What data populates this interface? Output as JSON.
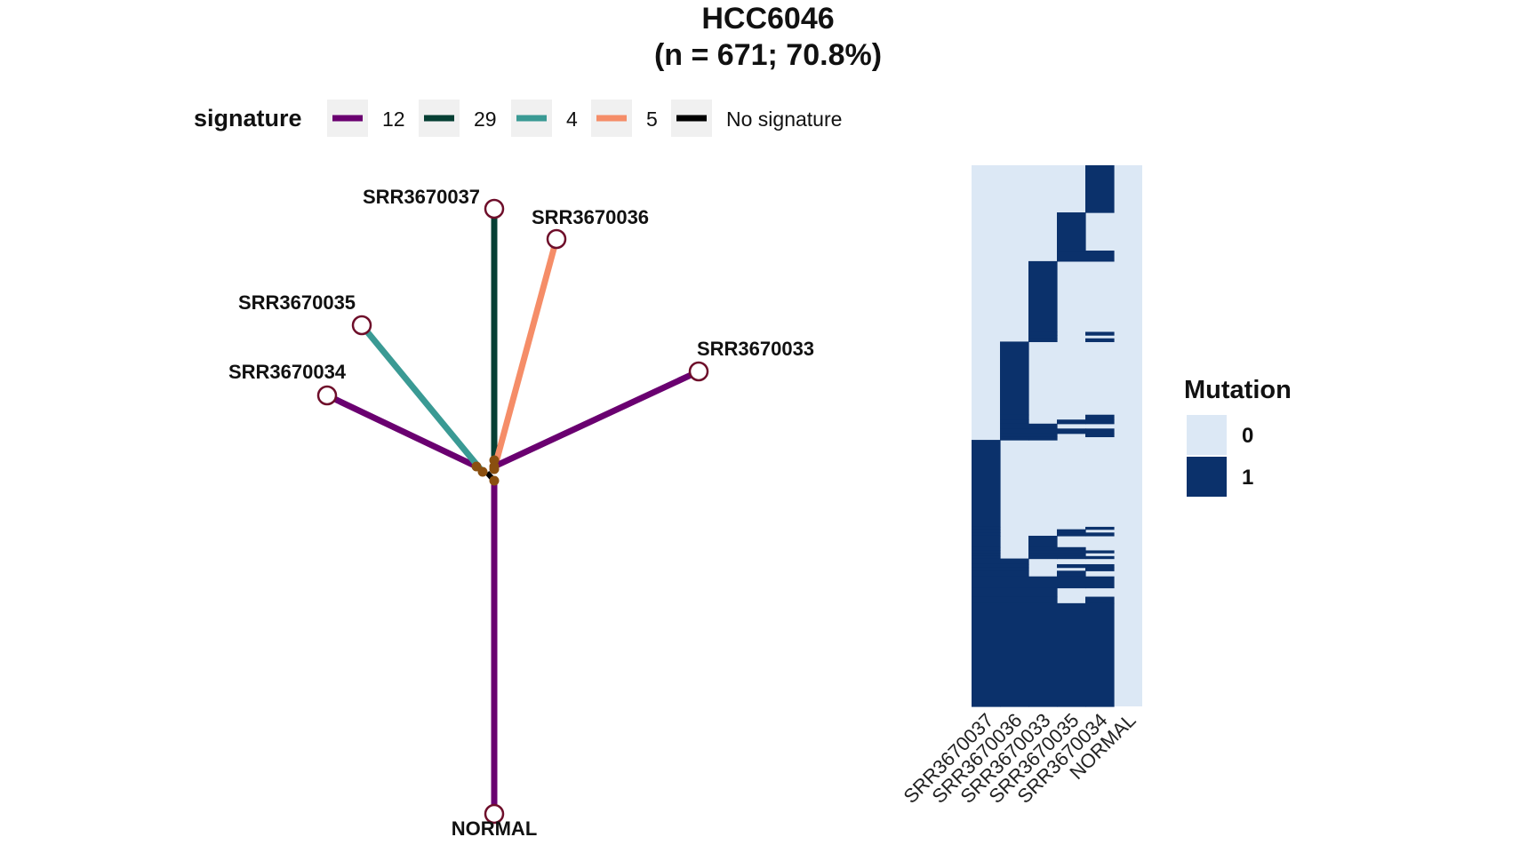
{
  "title": "HCC6046",
  "subtitle": "(n = 671; 70.8%)",
  "legend": {
    "title": "signature",
    "items": [
      {
        "label": "12",
        "color": "#6a0070"
      },
      {
        "label": "29",
        "color": "#063f34"
      },
      {
        "label": "4",
        "color": "#3a9a94"
      },
      {
        "label": "5",
        "color": "#f58d68"
      },
      {
        "label": "No signature",
        "color": "#000000"
      }
    ]
  },
  "chart_data": [
    {
      "type": "tree",
      "root_label": "NORMAL",
      "branches": [
        {
          "name": "NORMAL",
          "signature": "12"
        },
        {
          "name": "SRR3670034",
          "signature": "12"
        },
        {
          "name": "SRR3670035",
          "signature": "4"
        },
        {
          "name": "SRR3670037",
          "signature": "29"
        },
        {
          "name": "SRR3670036",
          "signature": "5"
        },
        {
          "name": "SRR3670033",
          "signature": "12"
        }
      ]
    },
    {
      "type": "heatmap",
      "legend_title": "Mutation",
      "legend": [
        {
          "label": "0",
          "color": "#dce8f5"
        },
        {
          "label": "1",
          "color": "#0b316b"
        }
      ],
      "columns": [
        "SRR3670037",
        "SRR3670036",
        "SRR3670033",
        "SRR3670035",
        "SRR3670034",
        "NORMAL"
      ],
      "row_count": 671,
      "patterns": [
        {
          "rows": 58,
          "values": [
            0,
            0,
            0,
            0,
            1,
            0
          ]
        },
        {
          "rows": 47,
          "values": [
            0,
            0,
            0,
            1,
            0,
            0
          ]
        },
        {
          "rows": 13,
          "values": [
            0,
            0,
            0,
            1,
            1,
            0
          ]
        },
        {
          "rows": 87,
          "values": [
            0,
            0,
            1,
            0,
            0,
            0
          ]
        },
        {
          "rows": 4,
          "values": [
            0,
            0,
            1,
            0,
            1,
            0
          ]
        },
        {
          "rows": 4,
          "values": [
            0,
            0,
            1,
            0,
            0,
            0
          ]
        },
        {
          "rows": 4,
          "values": [
            0,
            0,
            1,
            0,
            1,
            0
          ]
        },
        {
          "rows": 90,
          "values": [
            0,
            1,
            0,
            0,
            0,
            0
          ]
        },
        {
          "rows": 6,
          "values": [
            0,
            1,
            0,
            0,
            1,
            0
          ]
        },
        {
          "rows": 5,
          "values": [
            0,
            1,
            0,
            1,
            1,
            0
          ]
        },
        {
          "rows": 6,
          "values": [
            0,
            1,
            1,
            0,
            0,
            0
          ]
        },
        {
          "rows": 6,
          "values": [
            0,
            1,
            1,
            1,
            1,
            0
          ]
        },
        {
          "rows": 4,
          "values": [
            0,
            1,
            1,
            0,
            1,
            0
          ]
        },
        {
          "rows": 4,
          "values": [
            0,
            1,
            1,
            0,
            0,
            0
          ]
        },
        {
          "rows": 107,
          "values": [
            1,
            0,
            0,
            0,
            0,
            0
          ]
        },
        {
          "rows": 3,
          "values": [
            1,
            0,
            0,
            0,
            1,
            0
          ]
        },
        {
          "rows": 4,
          "values": [
            1,
            0,
            0,
            1,
            0,
            0
          ]
        },
        {
          "rows": 4,
          "values": [
            1,
            0,
            0,
            1,
            1,
            0
          ]
        },
        {
          "rows": 14,
          "values": [
            1,
            0,
            1,
            0,
            0,
            0
          ]
        },
        {
          "rows": 4,
          "values": [
            1,
            0,
            1,
            1,
            0,
            0
          ]
        },
        {
          "rows": 3,
          "values": [
            1,
            0,
            1,
            1,
            1,
            0
          ]
        },
        {
          "rows": 4,
          "values": [
            1,
            0,
            1,
            1,
            0,
            0
          ]
        },
        {
          "rows": 3,
          "values": [
            1,
            0,
            1,
            1,
            1,
            0
          ]
        },
        {
          "rows": 7,
          "values": [
            1,
            1,
            0,
            0,
            0,
            0
          ]
        },
        {
          "rows": 4,
          "values": [
            1,
            1,
            0,
            1,
            1,
            0
          ]
        },
        {
          "rows": 4,
          "values": [
            1,
            1,
            0,
            0,
            1,
            0
          ]
        },
        {
          "rows": 7,
          "values": [
            1,
            1,
            0,
            1,
            0,
            0
          ]
        },
        {
          "rows": 14,
          "values": [
            1,
            1,
            1,
            1,
            1,
            0
          ]
        },
        {
          "rows": 11,
          "values": [
            1,
            1,
            1,
            0,
            0,
            0
          ]
        },
        {
          "rows": 8,
          "values": [
            1,
            1,
            1,
            0,
            1,
            0
          ]
        },
        {
          "rows": 127,
          "values": [
            1,
            1,
            1,
            1,
            1,
            0
          ]
        }
      ]
    }
  ]
}
